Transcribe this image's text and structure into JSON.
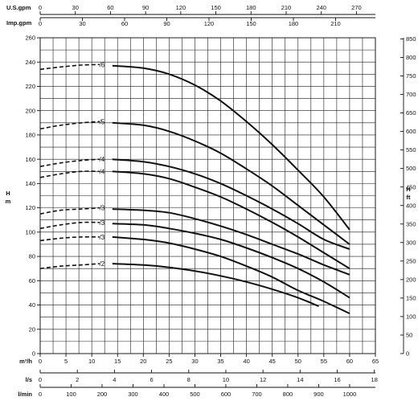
{
  "chart_data": {
    "type": "line",
    "title": "",
    "axes": {
      "x_primary": {
        "label": "m³/h",
        "range": [
          0,
          65
        ],
        "ticks": [
          0,
          5,
          10,
          15,
          20,
          25,
          30,
          35,
          40,
          45,
          50,
          55,
          60,
          65
        ]
      },
      "x_ls": {
        "label": "l/s",
        "range": [
          0,
          18.0556
        ],
        "ticks": [
          0,
          2,
          4,
          6,
          8,
          10,
          12,
          14,
          16,
          18
        ]
      },
      "x_lmin": {
        "label": "l/min",
        "range": [
          0,
          1083.3
        ],
        "ticks": [
          0,
          100,
          200,
          300,
          400,
          500,
          600,
          700,
          800,
          900,
          1000
        ]
      },
      "x_usgpm": {
        "label": "U.S.gpm",
        "range": [
          0,
          286.2
        ],
        "ticks": [
          0,
          30,
          60,
          90,
          120,
          150,
          180,
          210,
          240,
          270
        ]
      },
      "x_impgpm": {
        "label": "Imp.gpm",
        "range": [
          0,
          238.3
        ],
        "ticks": [
          0,
          30,
          60,
          90,
          120,
          150,
          180,
          210
        ]
      },
      "y_left": {
        "label": "H\nm",
        "range": [
          0,
          260
        ],
        "ticks": [
          0,
          20,
          40,
          60,
          80,
          100,
          120,
          140,
          160,
          180,
          200,
          220,
          240,
          260
        ]
      },
      "y_right": {
        "label": "H\nft",
        "range": [
          0,
          853
        ],
        "ticks": [
          0,
          50,
          100,
          150,
          200,
          250,
          300,
          350,
          400,
          450,
          500,
          550,
          600,
          650,
          700,
          750,
          800,
          850
        ]
      }
    },
    "grid": true,
    "series": [
      {
        "name": "/6",
        "label_at": [
          11,
          238
        ],
        "dashed": [
          [
            0,
            234
          ],
          [
            4,
            236
          ],
          [
            8,
            237.5
          ],
          [
            11.5,
            238
          ]
        ],
        "solid": [
          [
            14,
            237
          ],
          [
            20,
            235
          ],
          [
            25,
            230
          ],
          [
            30,
            221
          ],
          [
            35,
            208
          ],
          [
            40,
            191
          ],
          [
            45,
            172
          ],
          [
            50,
            151
          ],
          [
            55,
            129
          ],
          [
            60,
            102
          ]
        ]
      },
      {
        "name": "/5",
        "label_at": [
          11,
          191
        ],
        "dashed": [
          [
            0,
            185
          ],
          [
            4,
            188
          ],
          [
            8,
            190
          ],
          [
            11.5,
            191
          ]
        ],
        "solid": [
          [
            14,
            190
          ],
          [
            20,
            188
          ],
          [
            25,
            183
          ],
          [
            30,
            175
          ],
          [
            35,
            165
          ],
          [
            40,
            152
          ],
          [
            45,
            138
          ],
          [
            50,
            122
          ],
          [
            55,
            106
          ],
          [
            60,
            90
          ]
        ]
      },
      {
        "name": "/4",
        "label_at": [
          11,
          160
        ],
        "dashed": [
          [
            0,
            154
          ],
          [
            4,
            157
          ],
          [
            8,
            159
          ],
          [
            11.5,
            160
          ]
        ],
        "solid": [
          [
            14,
            160
          ],
          [
            20,
            158
          ],
          [
            25,
            154
          ],
          [
            30,
            148
          ],
          [
            35,
            140
          ],
          [
            40,
            130
          ],
          [
            45,
            119
          ],
          [
            50,
            107
          ],
          [
            55,
            94
          ],
          [
            60,
            86
          ]
        ]
      },
      {
        "name": "/4",
        "label_at": [
          11,
          150
        ],
        "dashed": [
          [
            0,
            145
          ],
          [
            4,
            148
          ],
          [
            8,
            150
          ],
          [
            11.5,
            150
          ]
        ],
        "solid": [
          [
            14,
            150
          ],
          [
            20,
            148
          ],
          [
            25,
            144
          ],
          [
            30,
            137
          ],
          [
            35,
            129
          ],
          [
            40,
            119
          ],
          [
            45,
            108
          ],
          [
            50,
            96
          ],
          [
            55,
            83
          ],
          [
            60,
            70
          ]
        ]
      },
      {
        "name": "/3",
        "label_at": [
          11,
          120
        ],
        "dashed": [
          [
            0,
            115
          ],
          [
            4,
            118
          ],
          [
            8,
            119
          ],
          [
            11.5,
            120
          ]
        ],
        "solid": [
          [
            14,
            119
          ],
          [
            20,
            118
          ],
          [
            25,
            116
          ],
          [
            30,
            111
          ],
          [
            35,
            105
          ],
          [
            40,
            98
          ],
          [
            45,
            90
          ],
          [
            50,
            82
          ],
          [
            55,
            73
          ],
          [
            60,
            65
          ]
        ]
      },
      {
        "name": "/3",
        "label_at": [
          11,
          108
        ],
        "dashed": [
          [
            0,
            103
          ],
          [
            4,
            106
          ],
          [
            8,
            108
          ],
          [
            11.5,
            108
          ]
        ],
        "solid": [
          [
            14,
            107
          ],
          [
            20,
            106
          ],
          [
            25,
            103
          ],
          [
            30,
            99
          ],
          [
            35,
            94
          ],
          [
            40,
            87
          ],
          [
            45,
            79
          ],
          [
            50,
            70
          ],
          [
            55,
            59
          ],
          [
            60,
            46
          ]
        ]
      },
      {
        "name": "/3",
        "label_at": [
          11,
          96
        ],
        "dashed": [
          [
            0,
            93
          ],
          [
            4,
            95
          ],
          [
            8,
            96
          ],
          [
            11.5,
            96
          ]
        ],
        "solid": [
          [
            14,
            96
          ],
          [
            20,
            94
          ],
          [
            25,
            91
          ],
          [
            30,
            86
          ],
          [
            35,
            80
          ],
          [
            40,
            72
          ],
          [
            45,
            63
          ],
          [
            50,
            52
          ],
          [
            55,
            43
          ],
          [
            60,
            33
          ]
        ]
      },
      {
        "name": "/2",
        "label_at": [
          11,
          74
        ],
        "dashed": [
          [
            0,
            70
          ],
          [
            4,
            72
          ],
          [
            8,
            73
          ],
          [
            11.5,
            74
          ]
        ],
        "solid": [
          [
            14,
            74
          ],
          [
            20,
            73
          ],
          [
            25,
            71
          ],
          [
            30,
            68
          ],
          [
            35,
            64
          ],
          [
            40,
            59
          ],
          [
            45,
            53
          ],
          [
            50,
            46
          ],
          [
            54,
            39
          ]
        ]
      }
    ]
  }
}
